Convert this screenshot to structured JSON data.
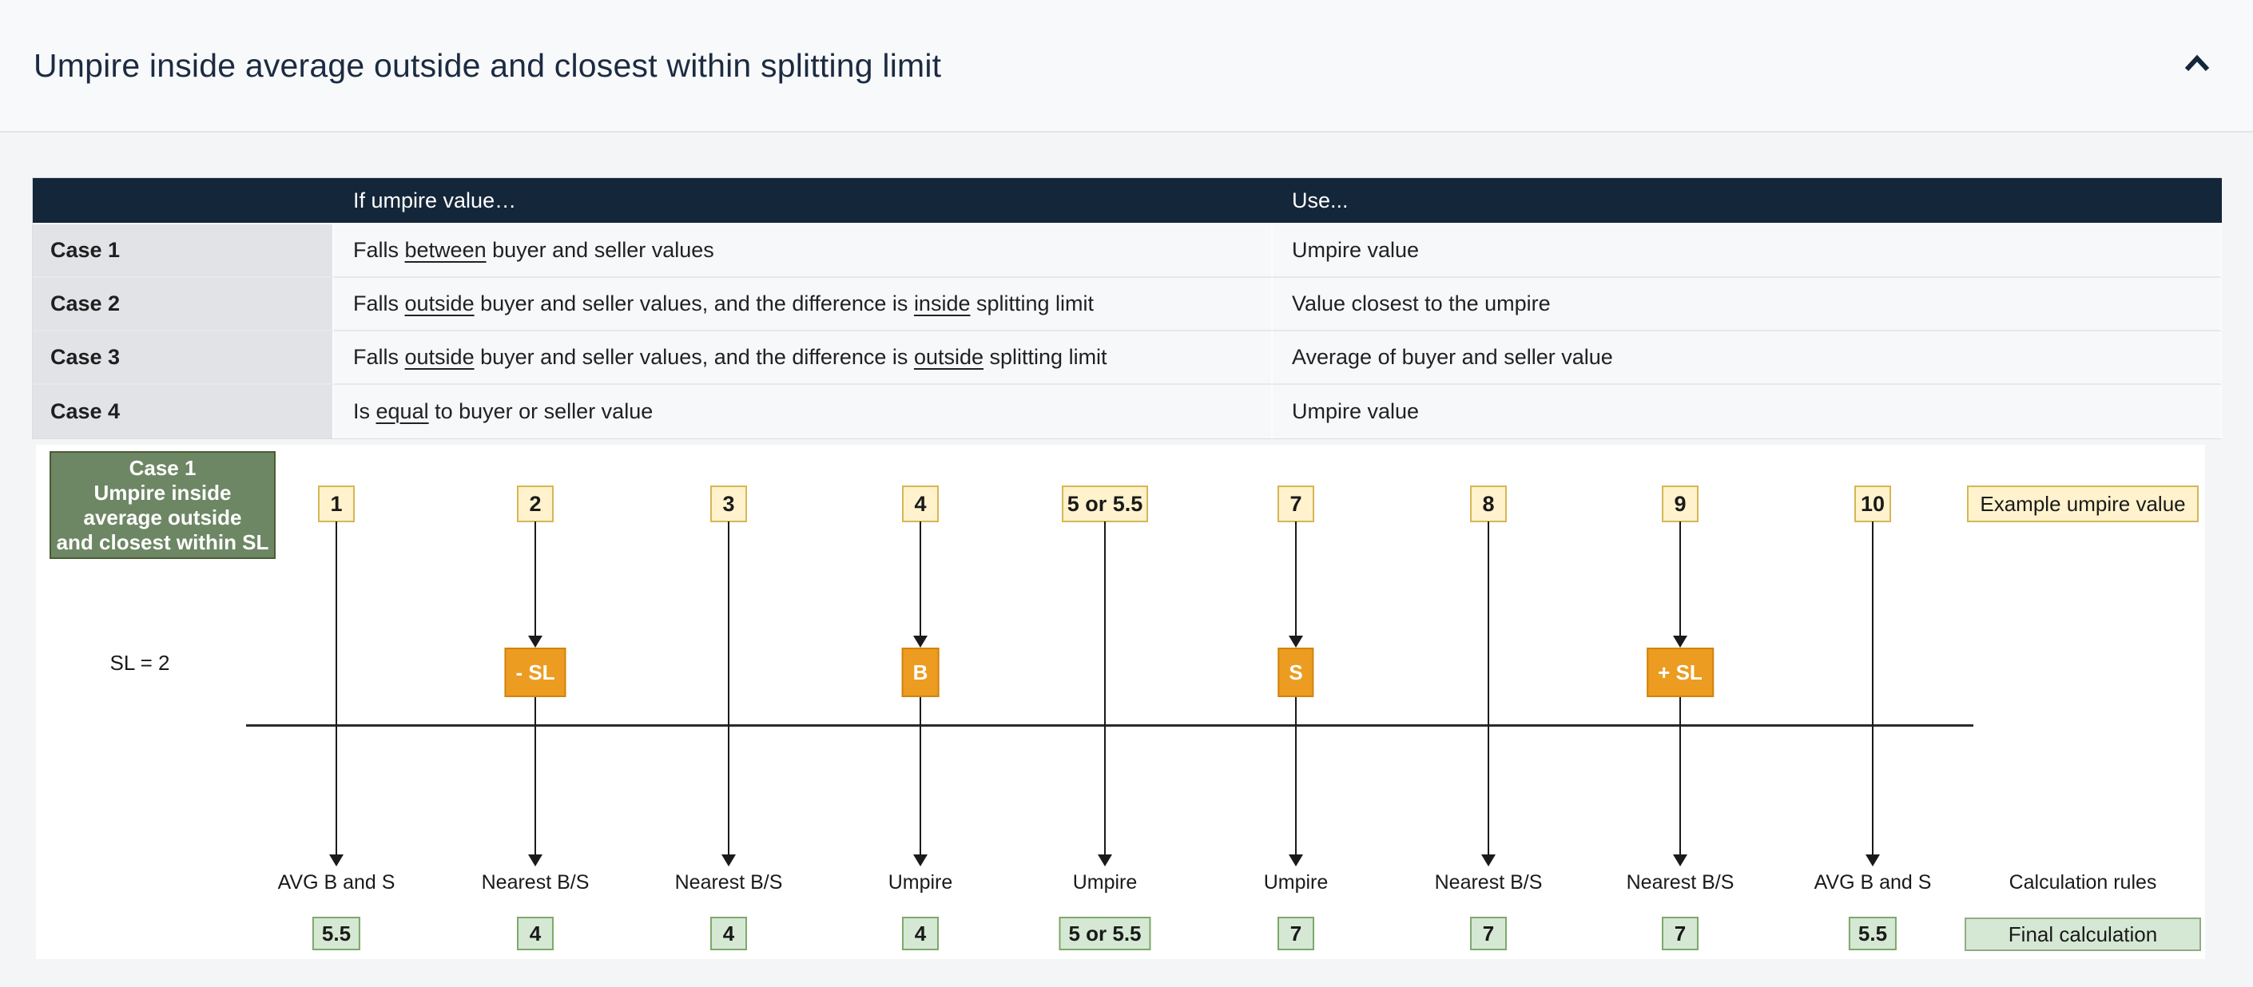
{
  "header": {
    "title": "Umpire inside average outside and closest within splitting limit",
    "collapse_icon": "chevron-up-icon"
  },
  "table": {
    "headers": [
      "",
      "If umpire value…",
      "Use..."
    ],
    "rows": [
      {
        "case": "Case 1",
        "condition": [
          {
            "t": "Falls "
          },
          {
            "t": "between",
            "u": true
          },
          {
            "t": " buyer and seller values"
          }
        ],
        "use": "Umpire value"
      },
      {
        "case": "Case 2",
        "condition": [
          {
            "t": "Falls "
          },
          {
            "t": "outside",
            "u": true
          },
          {
            "t": " buyer and seller values, and the difference is "
          },
          {
            "t": "inside",
            "u": true
          },
          {
            "t": " splitting limit"
          }
        ],
        "use": "Value closest to the umpire"
      },
      {
        "case": "Case 3",
        "condition": [
          {
            "t": "Falls "
          },
          {
            "t": "outside",
            "u": true
          },
          {
            "t": " buyer and seller values, and the difference is "
          },
          {
            "t": "outside",
            "u": true
          },
          {
            "t": " splitting limit"
          }
        ],
        "use": "Average of buyer and seller value"
      },
      {
        "case": "Case 4",
        "condition": [
          {
            "t": "Is "
          },
          {
            "t": "equal",
            "u": true
          },
          {
            "t": " to buyer or seller value"
          }
        ],
        "use": "Umpire value"
      }
    ]
  },
  "diagram": {
    "case_box_lines": [
      "Case 1",
      "Umpire inside",
      "average outside",
      "and closest within SL"
    ],
    "sl_label": "SL = 2",
    "columns": [
      {
        "value": "1",
        "marker": null,
        "rule": "AVG B and S",
        "result": "5.5"
      },
      {
        "value": "2",
        "marker": "- SL",
        "rule": "Nearest B/S",
        "result": "4"
      },
      {
        "value": "3",
        "marker": null,
        "rule": "Nearest B/S",
        "result": "4"
      },
      {
        "value": "4",
        "marker": "B",
        "rule": "Umpire",
        "result": "4"
      },
      {
        "value": "5 or 5.5",
        "marker": null,
        "rule": "Umpire",
        "result": "5 or 5.5"
      },
      {
        "value": "7",
        "marker": "S",
        "rule": "Umpire",
        "result": "7"
      },
      {
        "value": "8",
        "marker": null,
        "rule": "Nearest B/S",
        "result": "7"
      },
      {
        "value": "9",
        "marker": "+ SL",
        "rule": "Nearest B/S",
        "result": "7"
      },
      {
        "value": "10",
        "marker": null,
        "rule": "AVG B and S",
        "result": "5.5"
      }
    ],
    "legend": {
      "example_label": "Example umpire value",
      "rules_label": "Calculation rules",
      "final_label": "Final calculation"
    }
  },
  "colors": {
    "header_navy": "#142639",
    "title": "#1c2b42",
    "value_box_fill": "#fff2cc",
    "value_box_border": "#d6b656",
    "marker_fill": "#ec9c20",
    "marker_border": "#d3830e",
    "result_fill": "#d5e8d4",
    "result_border": "#7ea86c",
    "case_box_fill": "#6d8764",
    "case_box_border": "#4a5b35"
  }
}
